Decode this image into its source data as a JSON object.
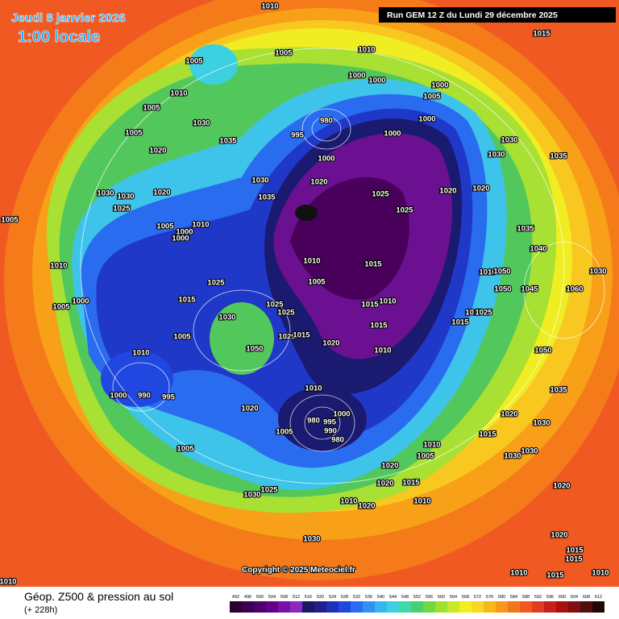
{
  "header": {
    "date": "Jeudi 8 janvier 2026",
    "time": "1:00 locale",
    "run": "Run GEM 12 Z du Lundi 29 décembre 2025"
  },
  "map": {
    "copyright": "Copyright © 2025 Meteociel.fr",
    "pressure_labels": [
      1010,
      1005,
      1010,
      1015,
      1005,
      1010,
      1005,
      1005,
      1030,
      1035,
      1020,
      980,
      995,
      1000,
      1000,
      1000,
      1005,
      1000,
      1000,
      1030,
      1030,
      1035,
      1000,
      1020,
      1025,
      1025,
      1020,
      1020,
      1030,
      1030,
      1025,
      1020,
      1035,
      1030,
      1005,
      1005,
      1010,
      1000,
      1000,
      1035,
      1040,
      1010,
      1010,
      1015,
      1010,
      1050,
      1005,
      1025,
      1005,
      1000,
      1050,
      1045,
      1060,
      1030,
      1015,
      1025,
      1025,
      1015,
      1010,
      1015,
      1025,
      1030,
      1015,
      1015,
      1025,
      1015,
      1005,
      1020,
      1010,
      1050,
      1010,
      1050,
      1010,
      1035,
      1000,
      990,
      995,
      1020,
      1000,
      980,
      995,
      990,
      980,
      1005,
      1020,
      1015,
      1030,
      1010,
      1005,
      1030,
      1030,
      1005,
      1020,
      1015,
      1020,
      1030,
      1025,
      1020,
      1010,
      1020,
      1010,
      1030,
      1020,
      1015,
      1015,
      1010,
      1015,
      1010,
      1010
    ]
  },
  "footer": {
    "title": "Géop. Z500 & pression au sol",
    "subtitle": "(+ 228h)",
    "scale": {
      "values": [
        492,
        496,
        500,
        504,
        508,
        512,
        516,
        520,
        524,
        528,
        532,
        536,
        540,
        544,
        548,
        552,
        556,
        560,
        564,
        568,
        572,
        576,
        580,
        584,
        588,
        592,
        596,
        600,
        604,
        608,
        612
      ],
      "colors": [
        "#2a0030",
        "#3c0050",
        "#50006a",
        "#640088",
        "#7a10a8",
        "#8c28c0",
        "#1a1a60",
        "#20208c",
        "#1e30b8",
        "#2048e0",
        "#2a6cf0",
        "#3090f4",
        "#38b4f0",
        "#3cd0e0",
        "#40d8a8",
        "#48d070",
        "#70d840",
        "#a0e030",
        "#c8e828",
        "#f0f020",
        "#f8d820",
        "#f8b818",
        "#f89818",
        "#f07818",
        "#f05820",
        "#e03c20",
        "#c82018",
        "#a81010",
        "#801010",
        "#501010",
        "#200808"
      ]
    }
  }
}
